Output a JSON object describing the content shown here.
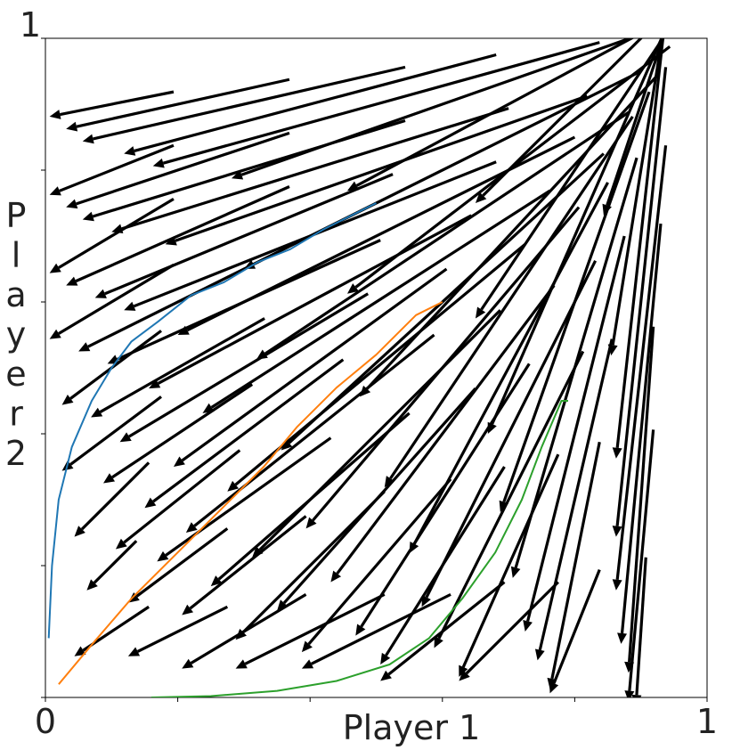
{
  "chart_data": {
    "type": "quiver",
    "xlabel": "Player 1",
    "ylabel": "Player 2",
    "xlim": [
      0,
      1
    ],
    "ylim": [
      0,
      1
    ],
    "x_tick_labels": [
      {
        "value": 0,
        "label": "0"
      },
      {
        "value": 1,
        "label": "1"
      }
    ],
    "y_tick_labels": [
      {
        "value": 1,
        "label": "1"
      }
    ],
    "minor_ticks": [
      0.2,
      0.4,
      0.6,
      0.8
    ],
    "grid": false,
    "arrow_color": "#000000",
    "quiver_grid": {
      "x": [
        0.1,
        0.2,
        0.3,
        0.4,
        0.5,
        0.6,
        0.7,
        0.8,
        0.9
      ],
      "y": [
        0.1,
        0.2,
        0.3,
        0.4,
        0.5,
        0.6,
        0.7,
        0.8,
        0.9
      ],
      "u_rows": [
        [
          -0.015,
          -0.02,
          -0.025,
          -0.03,
          -0.03,
          -0.025,
          -0.02,
          -0.01,
          -0.002
        ],
        [
          -0.01,
          -0.02,
          -0.025,
          -0.03,
          -0.03,
          -0.025,
          -0.02,
          -0.01,
          -0.005
        ],
        [
          -0.015,
          -0.025,
          -0.035,
          -0.04,
          -0.04,
          -0.035,
          -0.03,
          -0.015,
          -0.005
        ],
        [
          -0.02,
          -0.03,
          -0.04,
          -0.05,
          -0.05,
          -0.045,
          -0.035,
          -0.02,
          -0.008
        ],
        [
          -0.02,
          -0.035,
          -0.05,
          -0.055,
          -0.06,
          -0.055,
          -0.04,
          -0.025,
          -0.01
        ],
        [
          -0.025,
          -0.04,
          -0.055,
          -0.065,
          -0.07,
          -0.065,
          -0.05,
          -0.03,
          -0.01
        ],
        [
          -0.025,
          -0.045,
          -0.06,
          -0.075,
          -0.08,
          -0.075,
          -0.06,
          -0.035,
          -0.01
        ],
        [
          -0.025,
          -0.045,
          -0.065,
          -0.08,
          -0.085,
          -0.08,
          -0.065,
          -0.04,
          -0.012
        ],
        [
          -0.025,
          -0.045,
          -0.065,
          -0.075,
          -0.09,
          -0.085,
          -0.065,
          -0.04,
          -0.015
        ]
      ],
      "v_rows": [
        [
          -0.01,
          -0.01,
          -0.015,
          -0.015,
          -0.015,
          -0.02,
          -0.02,
          -0.025,
          -0.03
        ],
        [
          -0.01,
          -0.015,
          -0.02,
          -0.03,
          -0.035,
          -0.04,
          -0.045,
          -0.05,
          -0.055
        ],
        [
          -0.015,
          -0.02,
          -0.025,
          -0.035,
          -0.045,
          -0.055,
          -0.06,
          -0.065,
          -0.07
        ],
        [
          -0.015,
          -0.02,
          -0.03,
          -0.04,
          -0.05,
          -0.06,
          -0.07,
          -0.08,
          -0.085
        ],
        [
          -0.015,
          -0.02,
          -0.03,
          -0.04,
          -0.05,
          -0.065,
          -0.075,
          -0.085,
          -0.09
        ],
        [
          -0.015,
          -0.02,
          -0.025,
          -0.035,
          -0.045,
          -0.06,
          -0.075,
          -0.085,
          -0.095
        ],
        [
          -0.015,
          -0.02,
          -0.025,
          -0.03,
          -0.04,
          -0.05,
          -0.065,
          -0.08,
          -0.09
        ],
        [
          -0.01,
          -0.015,
          -0.02,
          -0.025,
          -0.03,
          -0.04,
          -0.05,
          -0.06,
          -0.075
        ],
        [
          -0.005,
          -0.01,
          -0.015,
          -0.02,
          -0.025,
          -0.03,
          -0.035,
          -0.04,
          -0.045
        ]
      ]
    },
    "series": [
      {
        "color": "#1f77b4",
        "x": [
          0.005,
          0.01,
          0.02,
          0.04,
          0.07,
          0.1,
          0.13,
          0.17,
          0.22,
          0.27,
          0.32,
          0.37,
          0.42,
          0.46,
          0.5
        ],
        "y": [
          0.09,
          0.2,
          0.3,
          0.38,
          0.45,
          0.5,
          0.54,
          0.57,
          0.61,
          0.63,
          0.66,
          0.68,
          0.71,
          0.73,
          0.75
        ]
      },
      {
        "color": "#ff7f0e",
        "x": [
          0.02,
          0.07,
          0.13,
          0.2,
          0.27,
          0.33,
          0.38,
          0.44,
          0.5,
          0.56,
          0.6
        ],
        "y": [
          0.02,
          0.08,
          0.15,
          0.22,
          0.29,
          0.35,
          0.41,
          0.47,
          0.52,
          0.58,
          0.6
        ]
      },
      {
        "color": "#2ca02c",
        "x": [
          0.16,
          0.25,
          0.35,
          0.44,
          0.52,
          0.58,
          0.63,
          0.68,
          0.72,
          0.75,
          0.78,
          0.79
        ],
        "y": [
          0.0,
          0.002,
          0.01,
          0.025,
          0.05,
          0.09,
          0.15,
          0.22,
          0.3,
          0.38,
          0.45,
          0.45
        ]
      }
    ]
  }
}
